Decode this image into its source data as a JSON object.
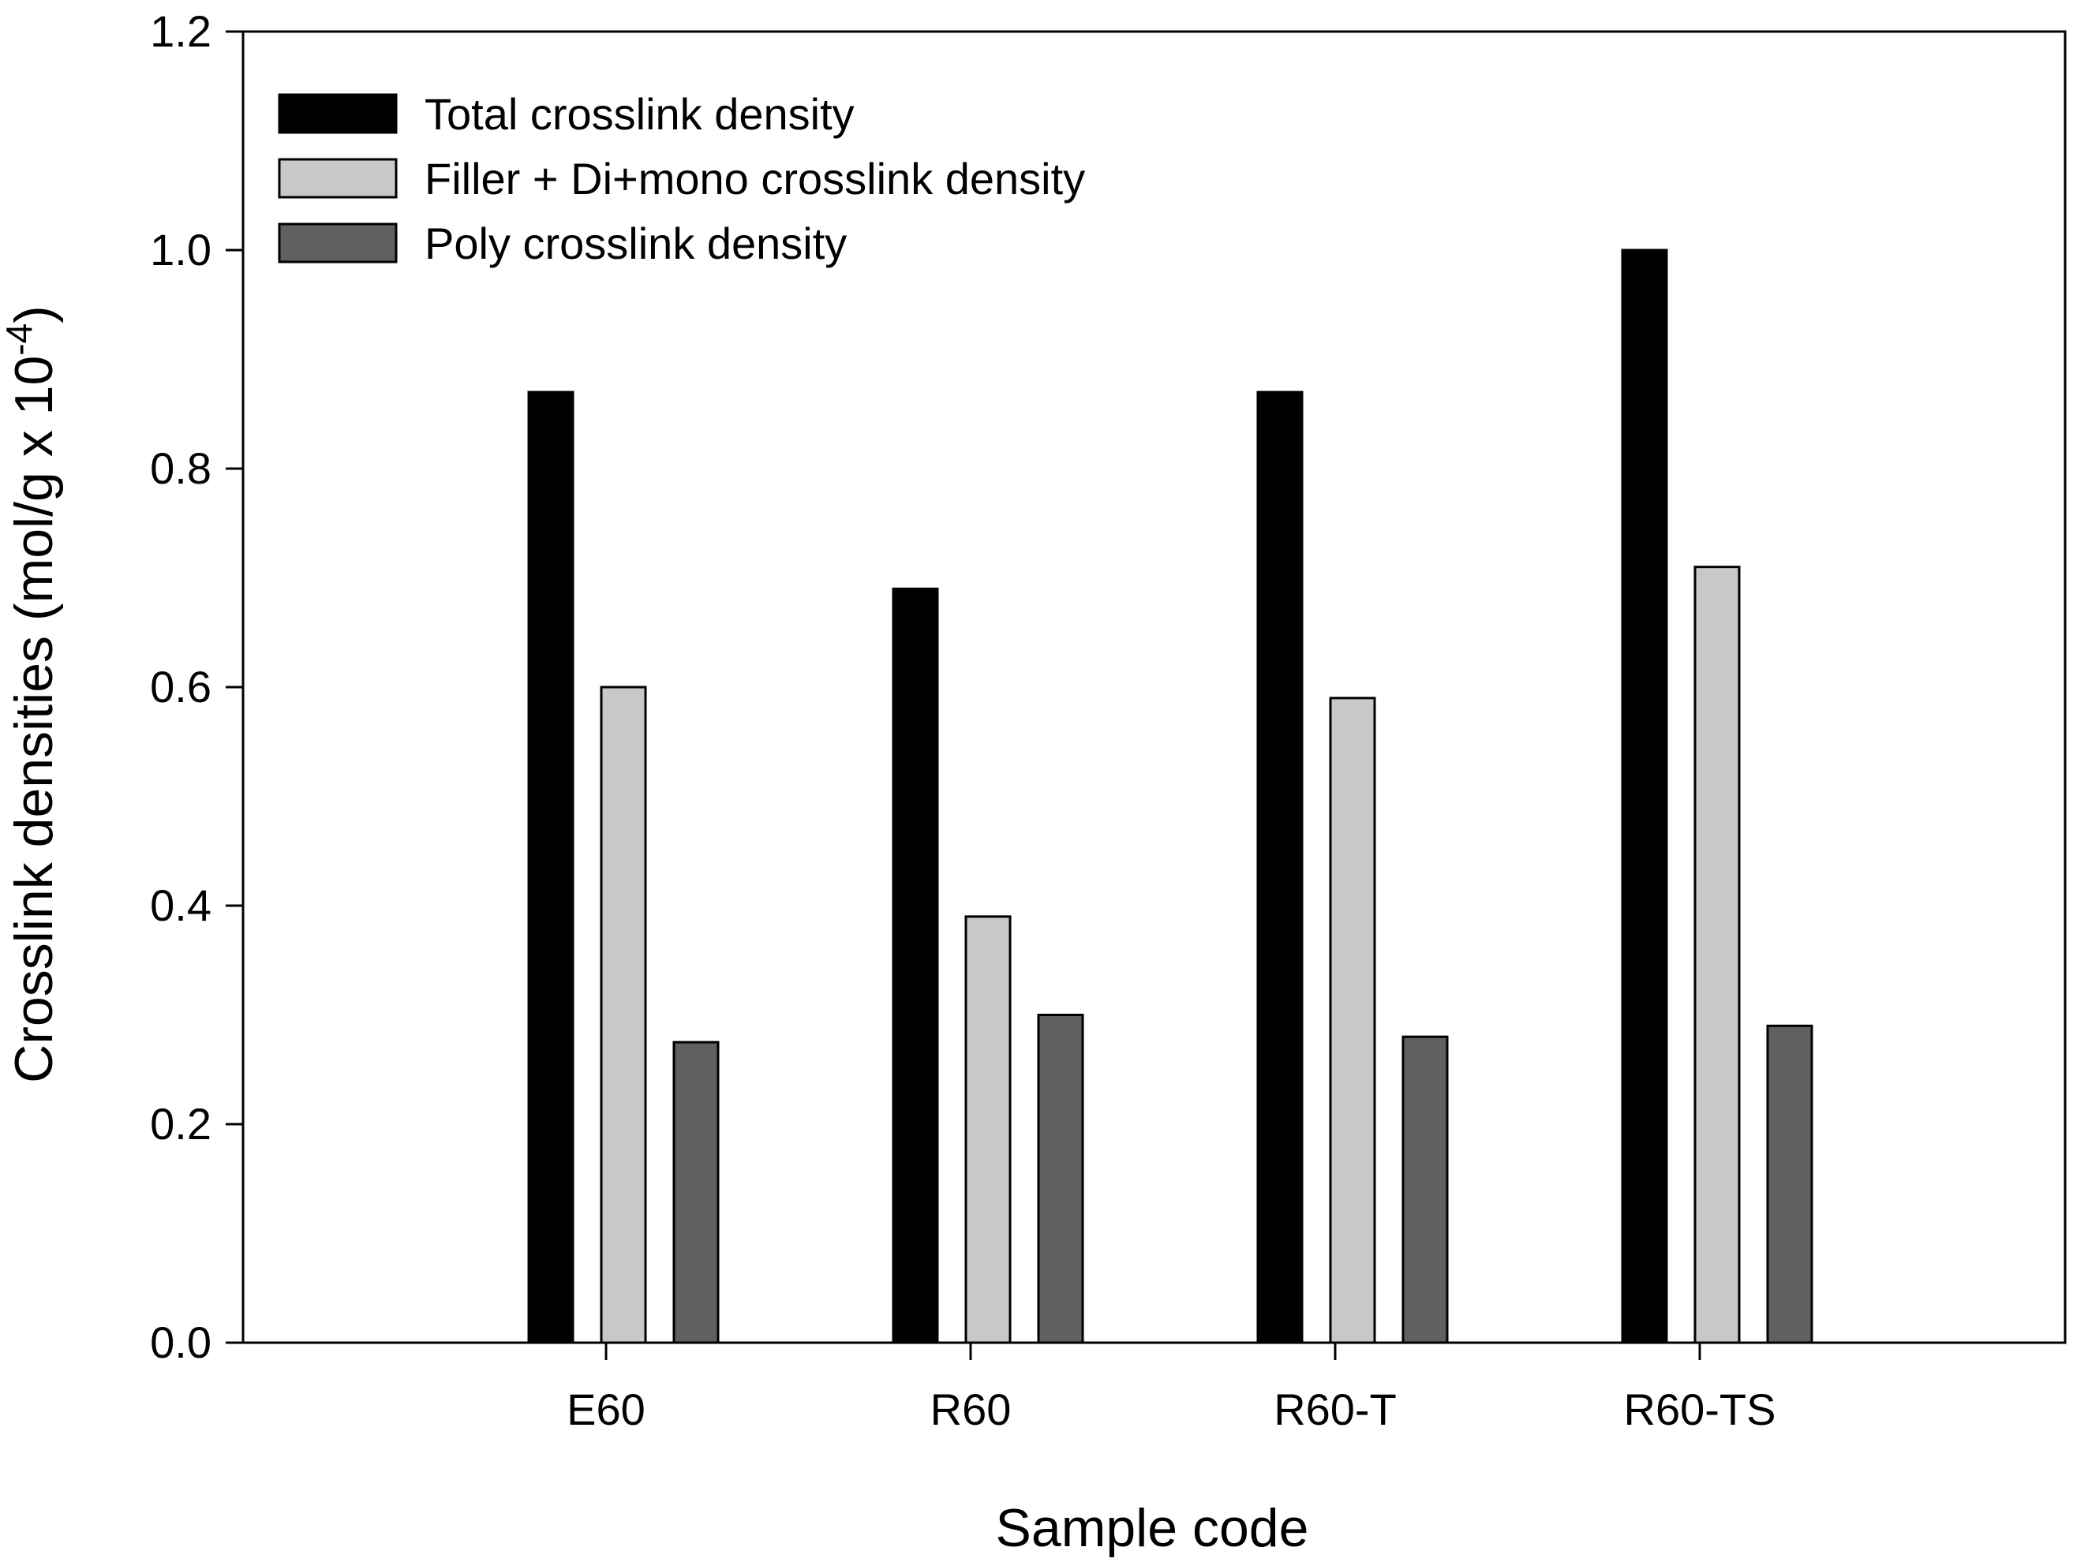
{
  "chart_data": {
    "type": "bar",
    "title": "",
    "categories": [
      "E60",
      "R60",
      "R60-T",
      "R60-TS"
    ],
    "series": [
      {
        "name": "Total crosslink density",
        "color": "#000000",
        "values": [
          0.87,
          0.69,
          0.87,
          1.0
        ]
      },
      {
        "name": "Filler + Di+mono crosslink density",
        "color": "#c8c8c8",
        "values": [
          0.6,
          0.39,
          0.59,
          0.71
        ]
      },
      {
        "name": "Poly crosslink density",
        "color": "#606060",
        "values": [
          0.275,
          0.3,
          0.28,
          0.29
        ]
      }
    ],
    "xlabel": "Sample code",
    "ylabel": "Crosslink densities (mol/g x 10",
    "ylabel_sup": "-4",
    "ylabel_close": ")",
    "ylim": [
      0,
      1.2
    ],
    "yticks": [
      "0.0",
      "0.2",
      "0.4",
      "0.6",
      "0.8",
      "1.0",
      "1.2"
    ],
    "grid": false,
    "legend_position": "top-left"
  }
}
